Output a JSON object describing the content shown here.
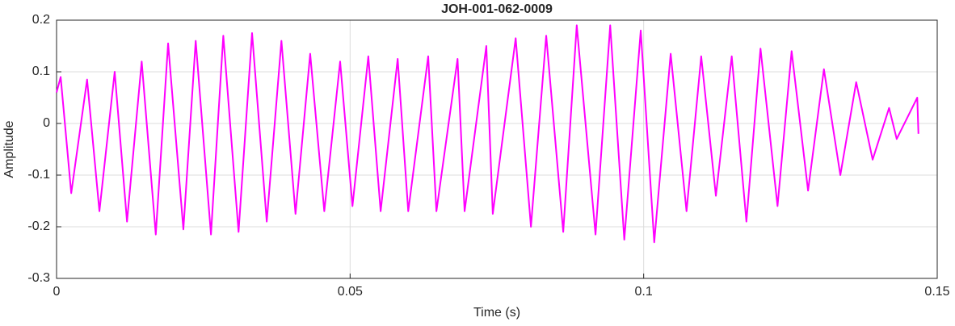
{
  "chart_data": {
    "type": "line",
    "title": "JOH-001-062-0009",
    "x_label": "Time (s)",
    "y_label": "Amplitude",
    "x": [
      0,
      0.0007,
      0.0025,
      0.0052,
      0.0073,
      0.0099,
      0.012,
      0.0145,
      0.0169,
      0.019,
      0.0216,
      0.0237,
      0.0263,
      0.0284,
      0.031,
      0.0333,
      0.0358,
      0.0383,
      0.0407,
      0.0432,
      0.0456,
      0.0483,
      0.0504,
      0.0531,
      0.0552,
      0.0581,
      0.0599,
      0.0633,
      0.0647,
      0.0683,
      0.0695,
      0.0732,
      0.0743,
      0.0782,
      0.0808,
      0.0834,
      0.0863,
      0.0886,
      0.0918,
      0.0943,
      0.0967,
      0.0995,
      0.1018,
      0.1046,
      0.1073,
      0.1098,
      0.1123,
      0.115,
      0.1175,
      0.1199,
      0.1228,
      0.1252,
      0.128,
      0.1307,
      0.1335,
      0.1362,
      0.139,
      0.1418,
      0.1431,
      0.1466,
      0.1468
    ],
    "series": [
      {
        "name": "Amplitude",
        "color": "#ff00ff",
        "values": [
          0.06,
          0.09,
          -0.135,
          0.085,
          -0.17,
          0.1,
          -0.19,
          0.12,
          -0.215,
          0.155,
          -0.205,
          0.16,
          -0.215,
          0.17,
          -0.21,
          0.175,
          -0.19,
          0.16,
          -0.175,
          0.135,
          -0.17,
          0.12,
          -0.16,
          0.13,
          -0.17,
          0.125,
          -0.17,
          0.13,
          -0.17,
          0.125,
          -0.17,
          0.15,
          -0.175,
          0.165,
          -0.2,
          0.17,
          -0.21,
          0.19,
          -0.215,
          0.19,
          -0.225,
          0.18,
          -0.23,
          0.135,
          -0.17,
          0.13,
          -0.14,
          0.13,
          -0.19,
          0.145,
          -0.16,
          0.14,
          -0.13,
          0.105,
          -0.1,
          0.08,
          -0.07,
          0.03,
          -0.03,
          0.05,
          -0.02
        ]
      }
    ],
    "xlim": [
      0,
      0.15
    ],
    "xticks": [
      0,
      0.05,
      0.1,
      0.15
    ],
    "ylim": [
      -0.3,
      0.2
    ],
    "yticks": [
      -0.3,
      -0.2,
      -0.1,
      0,
      0.1,
      0.2
    ],
    "grid": true
  }
}
